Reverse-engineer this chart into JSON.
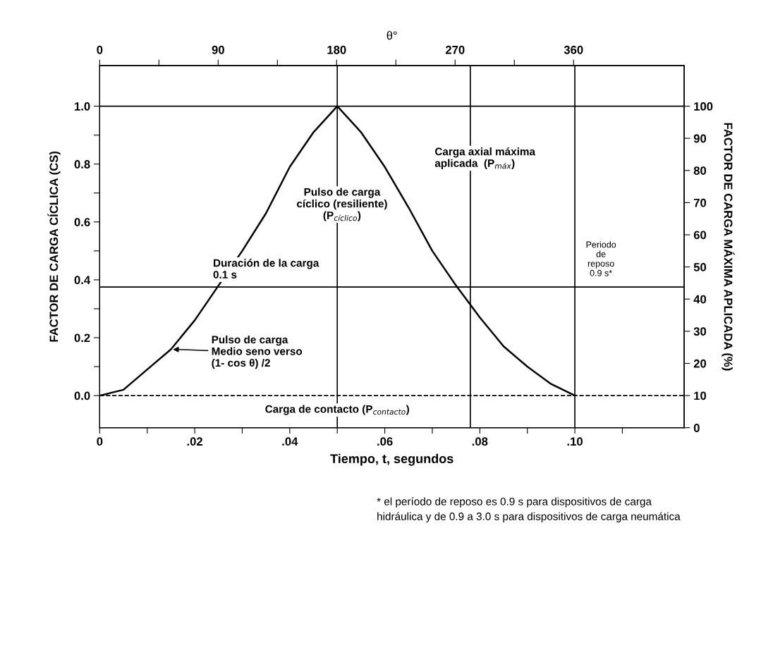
{
  "chart_data": {
    "type": "line",
    "xlabel": "Tiempo, t, segundos",
    "ylabel": "FACTOR DE CARGA CÍCLICA (CS)",
    "y2label": "FACTOR DE CARGA MÁXIMA APLICADA (%)",
    "x2label": "θ°",
    "x": [
      0,
      0.005,
      0.01,
      0.015,
      0.02,
      0.025,
      0.03,
      0.035,
      0.04,
      0.045,
      0.05,
      0.055,
      0.06,
      0.065,
      0.07,
      0.075,
      0.08,
      0.085,
      0.09,
      0.095,
      0.1
    ],
    "series": [
      {
        "color": "#000000",
        "values": [
          0,
          0.02,
          0.09,
          0.16,
          0.26,
          0.38,
          0.5,
          0.63,
          0.79,
          0.91,
          1.0,
          0.91,
          0.79,
          0.65,
          0.5,
          0.38,
          0.27,
          0.17,
          0.1,
          0.04,
          0
        ]
      }
    ],
    "xlim": [
      0,
      0.123
    ],
    "xticks": [
      0,
      {
        "value": 0.01,
        "label": null
      },
      {
        "value": 0.02,
        "label": ".02"
      },
      {
        "value": 0.03,
        "label": null
      },
      {
        "value": 0.04,
        "label": ".04"
      },
      {
        "value": 0.05,
        "label": null
      },
      {
        "value": 0.06,
        "label": ".06"
      },
      {
        "value": 0.07,
        "label": null
      },
      {
        "value": 0.08,
        "label": ".08"
      },
      {
        "value": 0.09,
        "label": null
      },
      {
        "value": 0.1,
        "label": ".10"
      },
      {
        "value": 0.11,
        "label": null
      }
    ],
    "x2lim": [
      0,
      444
    ],
    "x2ticks": [
      0,
      {
        "value": 45,
        "label": null
      },
      90,
      {
        "value": 135,
        "label": null
      },
      180,
      {
        "value": 225,
        "label": null
      },
      270,
      {
        "value": 315,
        "label": null
      },
      360
    ],
    "ylim": [
      -0.111,
      1.14
    ],
    "yticks": [
      {
        "value": 0,
        "label": "0.0"
      },
      {
        "value": 0.1,
        "label": null
      },
      0.2,
      {
        "value": 0.3,
        "label": null
      },
      0.4,
      {
        "value": 0.5,
        "label": null
      },
      0.6,
      {
        "value": 0.7,
        "label": null
      },
      0.8,
      {
        "value": 0.9,
        "label": null
      },
      {
        "value": 1,
        "label": "1.0"
      }
    ],
    "y2lim": [
      0,
      112.6
    ],
    "y2ticks": [
      0,
      10,
      20,
      30,
      40,
      50,
      60,
      70,
      80,
      90,
      100
    ],
    "ref_lines": [
      {
        "axis": "y",
        "value": 1.0,
        "line_style": "solid"
      },
      {
        "axis": "y",
        "value": 0,
        "line_style": "dashed"
      },
      {
        "axis": "y",
        "value": 0.375,
        "line_style": "solid"
      },
      {
        "axis": "x",
        "value": 0.05,
        "line_style": "solid"
      },
      {
        "axis": "x",
        "value": 0.078,
        "line_style": "solid"
      },
      {
        "axis": "x",
        "value": 0.1,
        "line_style": "solid"
      }
    ],
    "annotations": [
      {
        "text": "Carga axial máxima\naplicada  (P$_{máx}$)",
        "x": 0.078,
        "y": 0.8
      },
      {
        "text": "Pulso de carga\ncíclico (resiliente)\n(P$_{cíclico}$)",
        "x": 0.05,
        "y": 0.66
      },
      "Duración de la carga\n0.1 s",
      "Periodo\nde\nreposo\n0.9 s*",
      "Pulso de carga\nMedio seno verso\n(1- cos θ) /2",
      "Carga de contacto (P$_{contacto}$)",
      "* el período de reposo es 0.9 s para dispositivos de carga\nhidráulica y de 0.9 a 3.0 s para dispositivos de carga neumática"
    ],
    "grid": false,
    "legend": false,
    "marker": "none",
    "line_style": "solid"
  }
}
